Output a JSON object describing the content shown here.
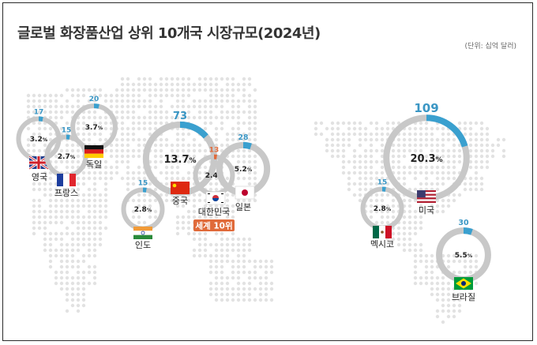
{
  "title": "글로벌 화장품산업 상위 10개국 시장규모(2024년)",
  "unit_note": "(단위: 십억 달러)",
  "colors": {
    "ring_bg": "#c8c8c8",
    "ring_fg": "#3aa0cf",
    "value_blue": "#3a96c4",
    "korea_accent": "#e06a3a",
    "map_dot": "#e2e2e2"
  },
  "chart_data": {
    "type": "bubble",
    "title": "글로벌 화장품산업 상위 10개국 시장규모(2024년)",
    "unit": "(단위: 십억 달러)",
    "countries": [
      {
        "name": "영국",
        "value": 17,
        "share": "3.2",
        "flag": "uk-flag-icon"
      },
      {
        "name": "프랑스",
        "value": 15,
        "share": "2.7",
        "flag": "france-flag-icon"
      },
      {
        "name": "독일",
        "value": 20,
        "share": "3.7",
        "flag": "germany-flag-icon"
      },
      {
        "name": "인도",
        "value": 15,
        "share": "2.8",
        "flag": "india-flag-icon"
      },
      {
        "name": "중국",
        "value": 73,
        "share": "13.7",
        "flag": "china-flag-icon"
      },
      {
        "name": "대한민국",
        "value": 13,
        "share": "2.4",
        "flag": "korea-flag-icon",
        "badge": "세계 10위"
      },
      {
        "name": "일본",
        "value": 28,
        "share": "5.2",
        "flag": "japan-flag-icon"
      },
      {
        "name": "미국",
        "value": 109,
        "share": "20.3",
        "flag": "usa-flag-icon"
      },
      {
        "name": "멕시코",
        "value": 15,
        "share": "2.8",
        "flag": "mexico-flag-icon"
      },
      {
        "name": "브라질",
        "value": 30,
        "share": "5.5",
        "flag": "brazil-flag-icon"
      }
    ]
  }
}
